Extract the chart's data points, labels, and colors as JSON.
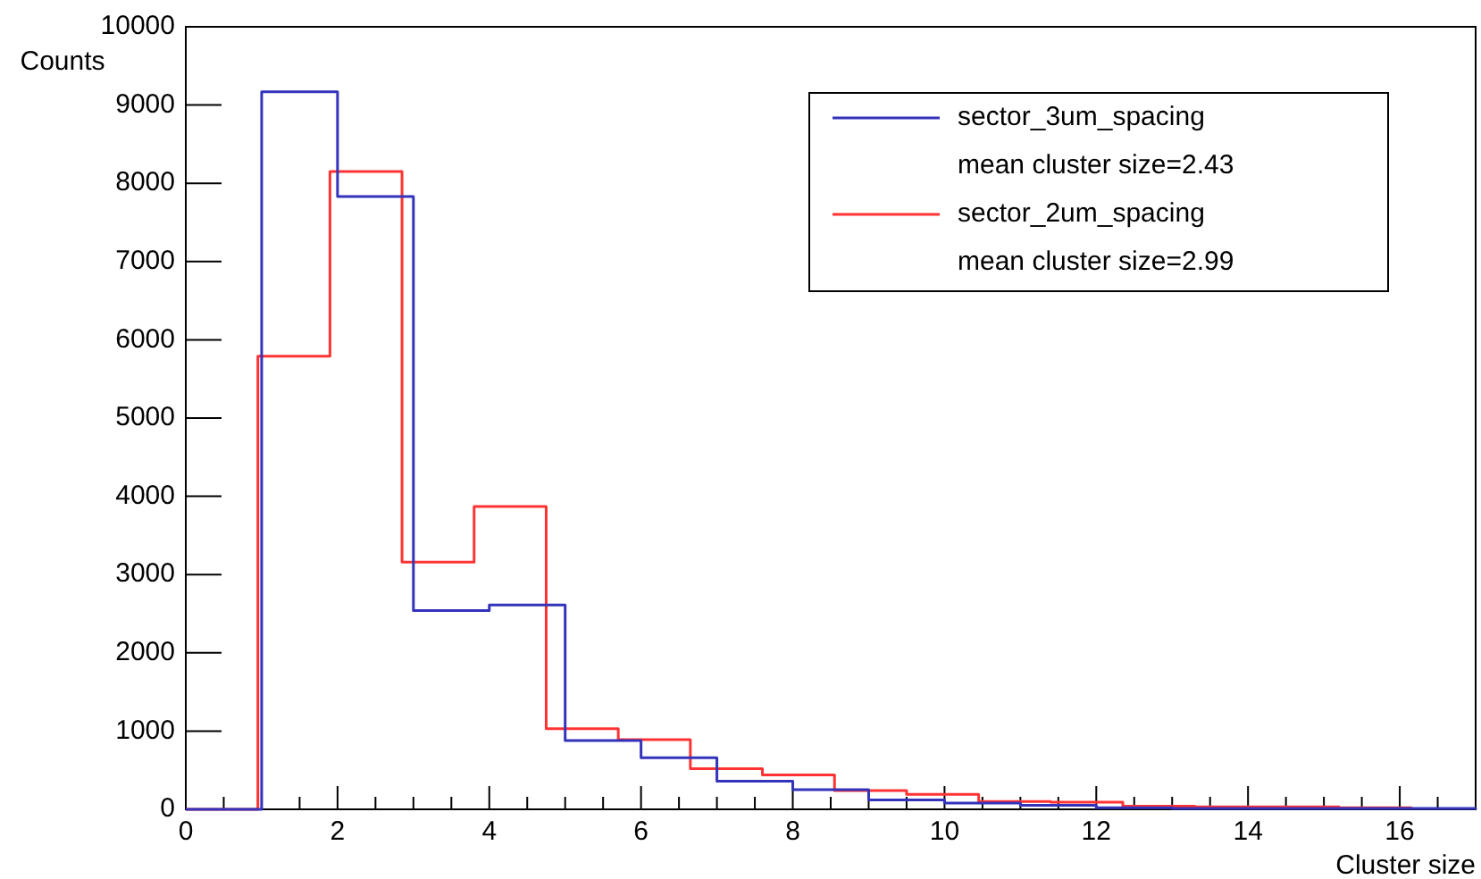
{
  "chart_data": {
    "type": "step",
    "xlabel": "Cluster size",
    "ylabel": "Counts",
    "xlim": [
      0,
      17
    ],
    "xticks": [
      0,
      2,
      4,
      6,
      8,
      10,
      12,
      14,
      16
    ],
    "ylim": [
      0,
      10000
    ],
    "yticks": [
      0,
      1000,
      2000,
      3000,
      4000,
      5000,
      6000,
      7000,
      8000,
      9000,
      10000
    ],
    "grid": false,
    "legend": "top right",
    "annotations": [
      "mean cluster size=2.43",
      "mean cluster size=2.99"
    ],
    "series": [
      {
        "name": "sector_3um_spacing",
        "color": "#3333bb",
        "x": [
          0,
          1,
          2,
          3,
          4,
          5,
          6,
          7,
          8,
          9,
          10,
          11,
          12,
          13,
          14,
          15,
          16,
          17
        ],
        "values": [
          0,
          9170,
          7830,
          2540,
          2610,
          880,
          660,
          360,
          250,
          120,
          80,
          50,
          20,
          10,
          10,
          10,
          10,
          0
        ]
      },
      {
        "name": "sector_2um_spacing",
        "color": "#ff3333",
        "x": [
          0,
          0.95,
          1.9,
          2.85,
          3.8,
          4.75,
          5.7,
          6.65,
          7.6,
          8.55,
          9.5,
          10.45,
          11.4,
          12.35,
          13.3,
          14.25,
          15.2,
          16.15
        ],
        "values": [
          0,
          5790,
          8150,
          3160,
          3870,
          1030,
          890,
          520,
          440,
          240,
          190,
          100,
          90,
          40,
          30,
          30,
          20,
          0
        ]
      }
    ]
  }
}
